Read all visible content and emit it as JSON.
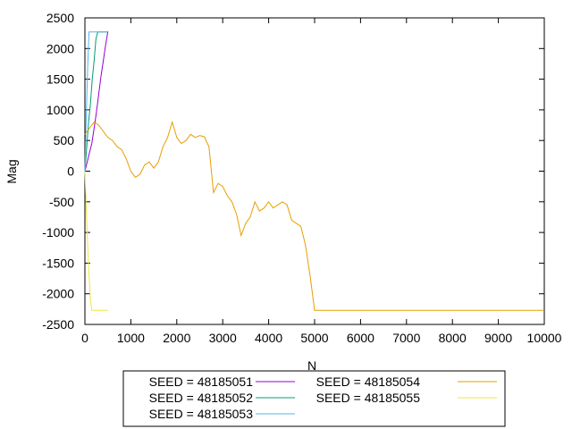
{
  "chart_data": {
    "type": "line",
    "xlabel": "N",
    "ylabel": "Mag",
    "xlim": [
      0,
      10000
    ],
    "ylim": [
      -2500,
      2500
    ],
    "x_ticks": [
      0,
      1000,
      2000,
      3000,
      4000,
      5000,
      6000,
      7000,
      8000,
      9000,
      10000
    ],
    "y_ticks": [
      -2500,
      -2000,
      -1500,
      -1000,
      -500,
      0,
      500,
      1000,
      1500,
      2000,
      2500
    ],
    "grid": false,
    "legend_position": "bottom-outside",
    "series": [
      {
        "name": "SEED = 48185051",
        "color": "#9400d3",
        "x": [
          0,
          50,
          100,
          150,
          200,
          250,
          300,
          350,
          400,
          450,
          500
        ],
        "y": [
          0,
          150,
          300,
          450,
          700,
          950,
          1250,
          1550,
          1800,
          2050,
          2280
        ]
      },
      {
        "name": "SEED = 48185052",
        "color": "#009e73",
        "x": [
          0,
          40,
          80,
          120,
          160,
          200,
          240,
          280,
          320,
          360,
          400,
          440,
          480
        ],
        "y": [
          0,
          400,
          800,
          1100,
          1500,
          1800,
          2150,
          2270,
          2270,
          2270,
          2270,
          2270,
          2270
        ]
      },
      {
        "name": "SEED = 48185053",
        "color": "#56b4e9",
        "x": [
          0,
          30,
          60,
          90,
          120,
          150,
          200,
          250,
          300,
          350,
          400,
          450,
          500
        ],
        "y": [
          0,
          900,
          1700,
          2270,
          2270,
          2270,
          2270,
          2270,
          2270,
          2270,
          2270,
          2270,
          2270
        ]
      },
      {
        "name": "SEED = 48185054",
        "color": "#e69f00",
        "x": [
          0,
          100,
          200,
          300,
          400,
          500,
          600,
          700,
          800,
          900,
          1000,
          1100,
          1200,
          1300,
          1400,
          1500,
          1600,
          1700,
          1800,
          1900,
          2000,
          2100,
          2200,
          2300,
          2400,
          2500,
          2600,
          2700,
          2800,
          2900,
          3000,
          3100,
          3200,
          3300,
          3400,
          3500,
          3600,
          3700,
          3800,
          3900,
          4000,
          4100,
          4200,
          4300,
          4400,
          4500,
          4600,
          4700,
          4800,
          4900,
          5000,
          5100,
          5200,
          5500,
          6000,
          6500,
          7000,
          7500,
          8000,
          8500,
          9000,
          9500,
          10000
        ],
        "y": [
          600,
          700,
          800,
          750,
          650,
          550,
          500,
          400,
          350,
          200,
          0,
          -100,
          -50,
          100,
          150,
          50,
          150,
          400,
          550,
          800,
          550,
          450,
          500,
          600,
          550,
          580,
          560,
          400,
          -350,
          -200,
          -250,
          -400,
          -500,
          -700,
          -1050,
          -850,
          -750,
          -500,
          -650,
          -600,
          -500,
          -600,
          -550,
          -500,
          -550,
          -800,
          -850,
          -900,
          -1200,
          -1700,
          -2270,
          -2270,
          -2270,
          -2270,
          -2270,
          -2270,
          -2270,
          -2270,
          -2270,
          -2270,
          -2270,
          -2270,
          -2270
        ]
      },
      {
        "name": "SEED = 48185055",
        "color": "#f0e442",
        "x": [
          0,
          30,
          60,
          90,
          120,
          150,
          200,
          250,
          300,
          350,
          400,
          450,
          500
        ],
        "y": [
          0,
          -600,
          -1200,
          -1700,
          -2100,
          -2270,
          -2270,
          -2270,
          -2270,
          -2270,
          -2270,
          -2270,
          -2270
        ]
      }
    ]
  }
}
